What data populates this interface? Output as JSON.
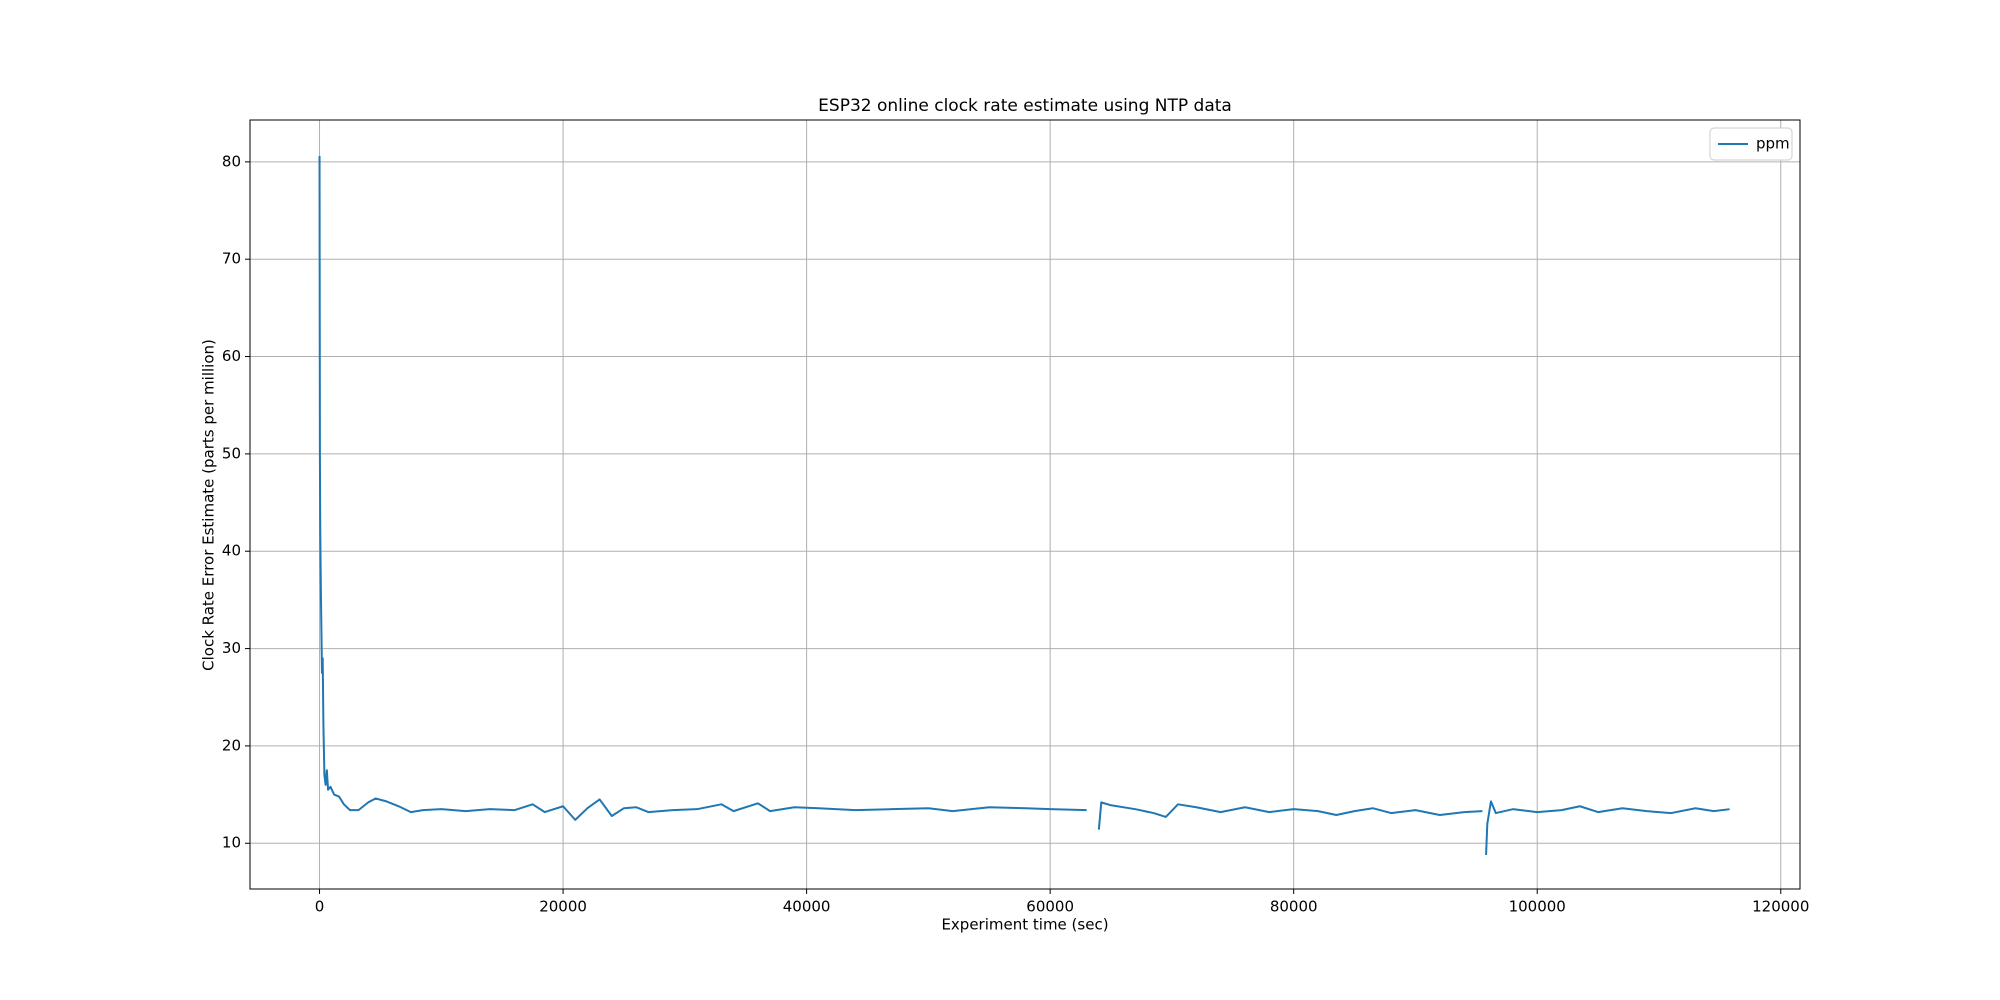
{
  "chart_data": {
    "type": "line",
    "title": "ESP32 online clock rate estimate using NTP data",
    "x_label": "Experiment time (sec)",
    "y_label": "Clock Rate Error Estimate (parts per million)",
    "x": [
      0,
      30,
      60,
      120,
      200,
      260,
      320,
      400,
      500,
      600,
      700,
      900,
      1200,
      1600,
      2000,
      2500,
      3200,
      4000,
      4600,
      5500,
      6500,
      7500,
      8500,
      10000,
      12000,
      14000,
      16000,
      17500,
      18500,
      20000,
      21000,
      22000,
      23000,
      24000,
      25000,
      26000,
      27000,
      29000,
      31000,
      33000,
      34000,
      36000,
      37000,
      39000,
      41000,
      44000,
      47000,
      50000,
      52000,
      55000,
      58000,
      60000,
      63000,
      63600,
      64000,
      64200,
      65000,
      67000,
      68500,
      69500,
      70500,
      72000,
      74000,
      76000,
      78000,
      80000,
      82000,
      83500,
      85000,
      86500,
      88000,
      90000,
      92000,
      94000,
      95500,
      95700,
      95800,
      95900,
      96200,
      96600,
      98000,
      100000,
      102000,
      103500,
      105000,
      107000,
      109000,
      111000,
      113000,
      114500,
      115800
    ],
    "series": [
      {
        "name": "ppm",
        "color": "#1f77b4",
        "values": [
          80.6,
          50,
          42,
          35,
          27.5,
          29,
          22,
          17,
          16,
          17.5,
          15.5,
          15.8,
          15,
          14.8,
          14,
          13.4,
          13.4,
          14.2,
          14.6,
          14.3,
          13.8,
          13.2,
          13.4,
          13.5,
          13.3,
          13.5,
          13.4,
          14,
          13.2,
          13.8,
          12.4,
          13.6,
          14.5,
          12.8,
          13.6,
          13.7,
          13.2,
          13.4,
          13.5,
          14,
          13.3,
          14.1,
          13.3,
          13.7,
          13.6,
          13.4,
          13.5,
          13.6,
          13.3,
          13.7,
          13.6,
          13.5,
          13.4,
          null,
          11.4,
          14.2,
          13.9,
          13.5,
          13.1,
          12.7,
          14,
          13.7,
          13.2,
          13.7,
          13.2,
          13.5,
          13.3,
          12.9,
          13.3,
          13.6,
          13.1,
          13.4,
          12.9,
          13.2,
          13.3,
          null,
          8.8,
          12,
          14.3,
          13.1,
          13.5,
          13.2,
          13.4,
          13.8,
          13.2,
          13.6,
          13.3,
          13.1,
          13.6,
          13.3,
          13.5
        ]
      }
    ],
    "xlim": [
      -5710,
      121580
    ],
    "xticks": [
      0,
      20000,
      40000,
      60000,
      80000,
      100000,
      120000
    ],
    "ylim": [
      5.3,
      84.3
    ],
    "yticks": [
      10,
      20,
      30,
      40,
      50,
      60,
      70,
      80
    ],
    "grid": true,
    "legend": "upper right"
  }
}
